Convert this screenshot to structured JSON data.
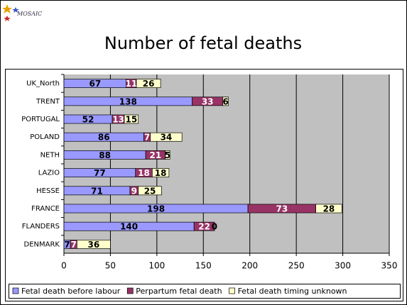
{
  "logo": "MOSAIC",
  "chart_data": {
    "type": "stacked-barh",
    "title": "Number of fetal deaths",
    "categories": [
      "UK_North",
      "TRENT",
      "PORTUGAL",
      "POLAND",
      "NETH",
      "LAZIO",
      "HESSE",
      "FRANCE",
      "FLANDERS",
      "DENMARK"
    ],
    "series": [
      {
        "name": "Fetal death before labour",
        "color": "#9999ff",
        "label_color": "#000000",
        "values": [
          67,
          138,
          52,
          86,
          88,
          77,
          71,
          198,
          140,
          7
        ]
      },
      {
        "name": "Perpartum fetal death",
        "color": "#993366",
        "label_color": "#ffffff",
        "values": [
          11,
          33,
          13,
          7,
          21,
          18,
          9,
          73,
          22,
          7
        ]
      },
      {
        "name": "Fetal death timing unknown",
        "color": "#ffffcc",
        "label_color": "#000000",
        "values": [
          26,
          6,
          15,
          34,
          5,
          18,
          25,
          28,
          0,
          36
        ]
      }
    ],
    "xlim": [
      0,
      350
    ],
    "xticks": [
      0,
      50,
      100,
      150,
      200,
      250,
      300,
      350
    ],
    "grid": true,
    "legend": "bottom"
  }
}
